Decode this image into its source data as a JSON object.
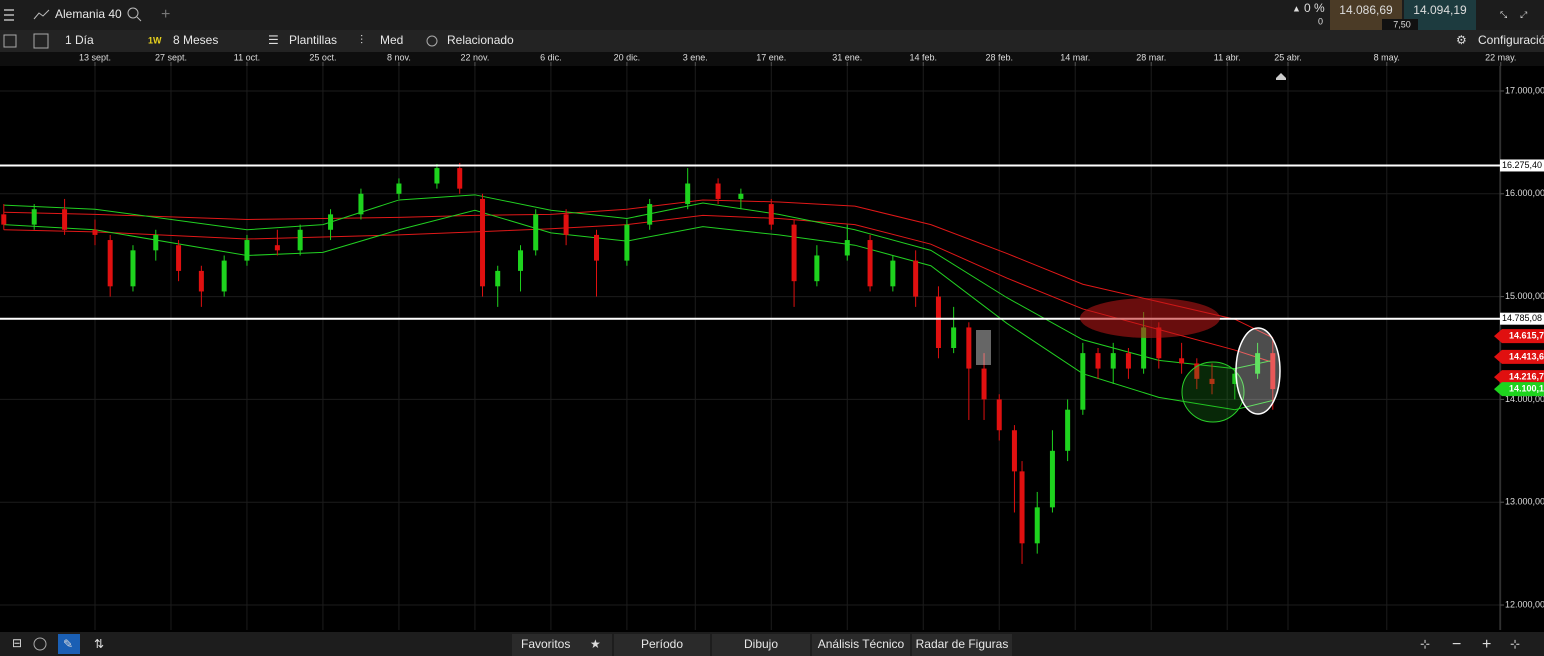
{
  "header": {
    "instrument": "Alemania 40",
    "change": "0 %",
    "change_points": "0",
    "sell": "14.086,69",
    "spread": "7,50",
    "buy": "14.094,19"
  },
  "toolbar": {
    "interval": "1 Día",
    "interval_badge": "1W",
    "range": "8 Meses",
    "templates": "Plantillas",
    "indicators": "Med",
    "related": "Relacionado",
    "settings": "Configuración"
  },
  "footer": {
    "favorites": "Favoritos",
    "period": "Período",
    "drawing": "Dibujo",
    "analysis": "Análisis Técnico",
    "patterns": "Radar de Figuras"
  },
  "chart_data": {
    "type": "candlestick",
    "xlim": [
      -12.5,
      184.9
    ],
    "xticks": [
      {
        "value": 0,
        "label": "13 sept."
      },
      {
        "value": 10,
        "label": "27 sept."
      },
      {
        "value": 20,
        "label": "11 oct."
      },
      {
        "value": 30,
        "label": "25 oct."
      },
      {
        "value": 40,
        "label": "8 nov."
      },
      {
        "value": 50,
        "label": "22 nov."
      },
      {
        "value": 60,
        "label": "6 dic."
      },
      {
        "value": 70,
        "label": "20 dic."
      },
      {
        "value": 79,
        "label": "3 ene."
      },
      {
        "value": 89,
        "label": "17 ene."
      },
      {
        "value": 99,
        "label": "31 ene."
      },
      {
        "value": 109,
        "label": "14 feb."
      },
      {
        "value": 119,
        "label": "28 feb."
      },
      {
        "value": 129,
        "label": "14 mar."
      },
      {
        "value": 139,
        "label": "28 mar."
      },
      {
        "value": 149,
        "label": "11 abr."
      },
      {
        "value": 157,
        "label": "25 abr."
      },
      {
        "value": 170,
        "label": "8 may."
      },
      {
        "value": 185,
        "label": "22 may."
      }
    ],
    "ylim": [
      11757,
      17243
    ],
    "yticks": [
      {
        "value": 12000,
        "label": "12.000,00"
      },
      {
        "value": 13000,
        "label": "13.000,00"
      },
      {
        "value": 14000,
        "label": "14.000,00"
      },
      {
        "value": 15000,
        "label": "15.000,00"
      },
      {
        "value": 16000,
        "label": "16.000,00"
      },
      {
        "value": 17000,
        "label": "17.000,00"
      }
    ],
    "grid": true,
    "up_color": "#1ed31e",
    "down_color": "#e01010",
    "candles": {
      "x": [
        -12,
        -8,
        -4,
        0,
        2,
        5,
        8,
        11,
        14,
        17,
        20,
        24,
        27,
        31,
        35,
        40,
        45,
        48,
        51,
        53,
        56,
        58,
        62,
        66,
        70,
        73,
        78,
        82,
        85,
        89,
        92,
        95,
        99,
        102,
        105,
        108,
        111,
        113,
        115,
        117,
        119,
        121,
        122,
        124,
        126,
        128,
        130,
        132,
        134,
        136,
        138,
        140,
        143,
        145,
        147,
        150,
        153,
        155
      ],
      "open": [
        15800,
        15700,
        15850,
        15650,
        15550,
        15100,
        15450,
        15500,
        15250,
        15050,
        15350,
        15500,
        15450,
        15650,
        15800,
        16000,
        16100,
        16250,
        15950,
        15100,
        15250,
        15450,
        15800,
        15600,
        15350,
        15700,
        15900,
        16100,
        15950,
        15900,
        15700,
        15150,
        15400,
        15550,
        15100,
        15350,
        15000,
        14500,
        14700,
        14300,
        14000,
        13700,
        13300,
        12600,
        12950,
        13500,
        13900,
        14450,
        14300,
        14450,
        14300,
        14700,
        14400,
        14350,
        14200,
        14150,
        14250,
        14450
      ],
      "high": [
        15900,
        15900,
        15950,
        15750,
        15600,
        15500,
        15650,
        15550,
        15300,
        15400,
        15600,
        15650,
        15700,
        15850,
        16050,
        16150,
        16290,
        16300,
        16000,
        15300,
        15500,
        15850,
        15850,
        15650,
        15750,
        15950,
        16250,
        16150,
        16050,
        15950,
        15750,
        15500,
        15700,
        15600,
        15400,
        15450,
        15100,
        14900,
        14750,
        14450,
        14050,
        13750,
        13400,
        13100,
        13700,
        14000,
        14550,
        14500,
        14550,
        14500,
        14850,
        14750,
        14550,
        14400,
        14350,
        14300,
        14550,
        14600
      ],
      "low": [
        15650,
        15650,
        15600,
        15500,
        15000,
        15050,
        15350,
        15150,
        14900,
        15000,
        15300,
        15400,
        15400,
        15550,
        15750,
        15950,
        16050,
        16000,
        15000,
        14900,
        15050,
        15400,
        15500,
        15000,
        15300,
        15650,
        15850,
        15900,
        15850,
        15650,
        14900,
        15100,
        15350,
        15050,
        15050,
        14900,
        14400,
        14450,
        13800,
        13800,
        13600,
        12900,
        12400,
        12500,
        12900,
        13400,
        13850,
        14200,
        14150,
        14200,
        14250,
        14300,
        14250,
        14100,
        14050,
        14000,
        14200,
        13900
      ],
      "close": [
        15700,
        15850,
        15650,
        15600,
        15100,
        15450,
        15600,
        15250,
        15050,
        15350,
        15550,
        15450,
        15650,
        15800,
        16000,
        16100,
        16250,
        16050,
        15100,
        15250,
        15450,
        15800,
        15600,
        15350,
        15700,
        15900,
        16100,
        15950,
        16000,
        15700,
        15150,
        15400,
        15550,
        15100,
        15350,
        15000,
        14500,
        14700,
        14300,
        14000,
        13700,
        13300,
        12600,
        12950,
        13500,
        13900,
        14450,
        14300,
        14450,
        14300,
        14700,
        14400,
        14350,
        14200,
        14150,
        14250,
        14450,
        14100
      ]
    },
    "bands": {
      "x": [
        -12,
        0,
        20,
        30,
        40,
        50,
        60,
        70,
        80,
        90,
        100,
        110,
        120,
        130,
        140,
        150,
        155
      ],
      "series": [
        {
          "color": "#e01818",
          "values": [
            15820,
            15800,
            15750,
            15760,
            15770,
            15790,
            15800,
            15850,
            15940,
            15920,
            15880,
            15700,
            15420,
            15120,
            14950,
            14780,
            14600
          ]
        },
        {
          "color": "#e01818",
          "values": [
            15650,
            15630,
            15560,
            15580,
            15600,
            15630,
            15660,
            15700,
            15790,
            15760,
            15700,
            15510,
            15180,
            14880,
            14680,
            14480,
            14360
          ]
        },
        {
          "color": "#22d022",
          "values": [
            15890,
            15850,
            15650,
            15700,
            15940,
            15990,
            15840,
            15760,
            15910,
            15800,
            15650,
            15450,
            14990,
            14580,
            14380,
            14300,
            14380
          ]
        },
        {
          "color": "#22d022",
          "values": [
            15700,
            15650,
            15400,
            15430,
            15650,
            15840,
            15620,
            15540,
            15680,
            15600,
            15500,
            15300,
            14740,
            14250,
            14020,
            13900,
            13990
          ]
        }
      ]
    },
    "levels": [
      {
        "value": 16275.4,
        "label": "16.275,40"
      },
      {
        "value": 14785.08,
        "label": "14.785,08"
      }
    ],
    "price_tags": [
      {
        "value": 14615.7,
        "label": "14.615,7",
        "color": "#e01010"
      },
      {
        "value": 14413.6,
        "label": "14.413,6",
        "color": "#e01010"
      },
      {
        "value": 14216.7,
        "label": "14.216,7",
        "color": "#e01010"
      },
      {
        "value": 14100.1,
        "label": "14.100,1",
        "color": "#1ed31e"
      }
    ]
  }
}
